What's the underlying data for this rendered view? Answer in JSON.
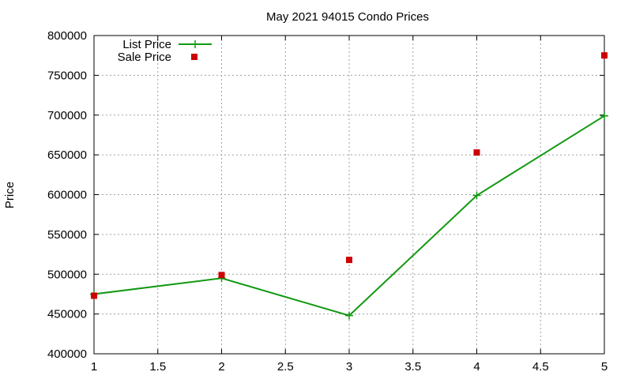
{
  "chart_data": {
    "type": "line",
    "title": "May 2021 94015 Condo Prices",
    "xlabel": "",
    "ylabel": "Price",
    "xlim": [
      1,
      5
    ],
    "ylim": [
      400000,
      800000
    ],
    "x_ticks": [
      1,
      1.5,
      2,
      2.5,
      3,
      3.5,
      4,
      4.5,
      5
    ],
    "x_tick_labels": [
      "1",
      "1.5",
      "2",
      "2.5",
      "3",
      "3.5",
      "4",
      "4.5",
      "5"
    ],
    "y_ticks": [
      400000,
      450000,
      500000,
      550000,
      600000,
      650000,
      700000,
      750000,
      800000
    ],
    "y_tick_labels": [
      "400000",
      "450000",
      "500000",
      "550000",
      "600000",
      "650000",
      "700000",
      "750000",
      "800000"
    ],
    "grid": true,
    "legend_position": "top-left",
    "series": [
      {
        "name": "List Price",
        "style": "line-with-plus-markers",
        "color": "#119911",
        "x": [
          1,
          2,
          3,
          4,
          5
        ],
        "y": [
          475000,
          495000,
          448000,
          599000,
          699000
        ]
      },
      {
        "name": "Sale Price",
        "style": "square-markers",
        "color": "#cc0000",
        "x": [
          1,
          2,
          3,
          4,
          5
        ],
        "y": [
          473000,
          499000,
          518000,
          653000,
          775000
        ]
      }
    ]
  }
}
